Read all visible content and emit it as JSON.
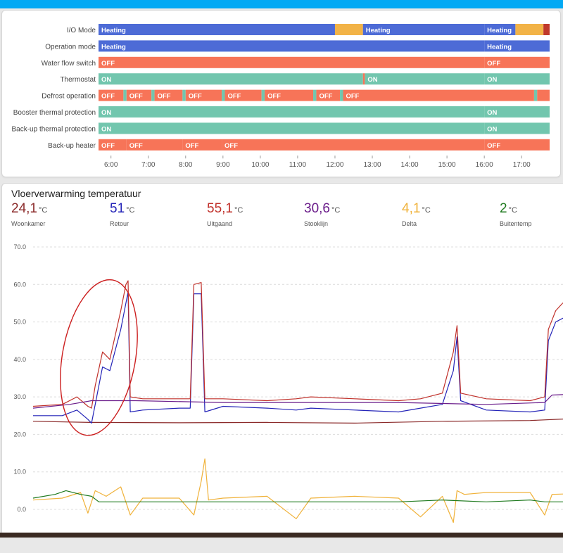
{
  "timeline": {
    "hour_labels": [
      "6:00",
      "7:00",
      "8:00",
      "9:00",
      "10:00",
      "11:00",
      "12:00",
      "13:00",
      "14:00",
      "15:00",
      "16:00",
      "17:00"
    ],
    "colors": {
      "heating": "#4d6bd6",
      "other": "#f2b347",
      "off": "#f77458",
      "on": "#72c6ae",
      "end": "#c0392b",
      "end_on": "#2e5e52"
    },
    "rows": [
      {
        "label": "I/O Mode",
        "segments": [
          {
            "start": "05:40",
            "end": "12:00",
            "state": "heating",
            "text": "Heating"
          },
          {
            "start": "12:00",
            "end": "12:45",
            "state": "other",
            "text": ""
          },
          {
            "start": "12:45",
            "end": "16:00",
            "state": "heating",
            "text": "Heating"
          },
          {
            "start": "16:00",
            "end": "16:50",
            "state": "heating",
            "text": "Heating"
          },
          {
            "start": "16:50",
            "end": "17:35",
            "state": "other",
            "text": ""
          },
          {
            "start": "17:35",
            "end": "17:45",
            "state": "end",
            "text": ""
          }
        ]
      },
      {
        "label": "Operation mode",
        "segments": [
          {
            "start": "05:40",
            "end": "16:00",
            "state": "heating",
            "text": "Heating"
          },
          {
            "start": "16:00",
            "end": "17:45",
            "state": "heating",
            "text": "Heating"
          }
        ]
      },
      {
        "label": "Water flow switch",
        "segments": [
          {
            "start": "05:40",
            "end": "16:00",
            "state": "off",
            "text": "OFF"
          },
          {
            "start": "16:00",
            "end": "17:45",
            "state": "off",
            "text": "OFF"
          }
        ]
      },
      {
        "label": "Thermostat",
        "segments": [
          {
            "start": "05:40",
            "end": "12:45",
            "state": "on",
            "text": "ON"
          },
          {
            "start": "12:45",
            "end": "12:48",
            "state": "off",
            "text": ""
          },
          {
            "start": "12:48",
            "end": "16:00",
            "state": "on",
            "text": "ON"
          },
          {
            "start": "16:00",
            "end": "17:45",
            "state": "on",
            "text": "ON"
          }
        ]
      },
      {
        "label": "Defrost operation",
        "segments": [
          {
            "start": "05:40",
            "end": "06:20",
            "state": "off",
            "text": "OFF"
          },
          {
            "start": "06:20",
            "end": "06:25",
            "state": "on",
            "text": ""
          },
          {
            "start": "06:25",
            "end": "07:05",
            "state": "off",
            "text": "OFF"
          },
          {
            "start": "07:05",
            "end": "07:10",
            "state": "on",
            "text": ""
          },
          {
            "start": "07:10",
            "end": "07:55",
            "state": "off",
            "text": "OFF"
          },
          {
            "start": "07:55",
            "end": "08:00",
            "state": "on",
            "text": ""
          },
          {
            "start": "08:00",
            "end": "08:58",
            "state": "off",
            "text": "OFF"
          },
          {
            "start": "08:58",
            "end": "09:03",
            "state": "on",
            "text": ""
          },
          {
            "start": "09:03",
            "end": "10:02",
            "state": "off",
            "text": "OFF"
          },
          {
            "start": "10:02",
            "end": "10:07",
            "state": "on",
            "text": ""
          },
          {
            "start": "10:07",
            "end": "11:25",
            "state": "off",
            "text": "OFF"
          },
          {
            "start": "11:25",
            "end": "11:30",
            "state": "on",
            "text": ""
          },
          {
            "start": "11:30",
            "end": "12:08",
            "state": "off",
            "text": "OFF"
          },
          {
            "start": "12:08",
            "end": "12:13",
            "state": "on",
            "text": ""
          },
          {
            "start": "12:13",
            "end": "17:20",
            "state": "off",
            "text": "OFF"
          },
          {
            "start": "17:20",
            "end": "17:25",
            "state": "on",
            "text": ""
          },
          {
            "start": "17:25",
            "end": "17:45",
            "state": "off",
            "text": ""
          }
        ]
      },
      {
        "label": "Booster thermal protection",
        "segments": [
          {
            "start": "05:40",
            "end": "16:00",
            "state": "on",
            "text": "ON"
          },
          {
            "start": "16:00",
            "end": "17:45",
            "state": "on",
            "text": "ON"
          }
        ]
      },
      {
        "label": "Back-up thermal protection",
        "segments": [
          {
            "start": "05:40",
            "end": "16:00",
            "state": "on",
            "text": "ON"
          },
          {
            "start": "16:00",
            "end": "17:45",
            "state": "on",
            "text": "ON"
          }
        ]
      },
      {
        "label": "Back-up heater",
        "segments": [
          {
            "start": "05:40",
            "end": "06:25",
            "state": "off",
            "text": "OFF"
          },
          {
            "start": "06:25",
            "end": "07:55",
            "state": "off",
            "text": "OFF"
          },
          {
            "start": "07:55",
            "end": "08:58",
            "state": "off",
            "text": "OFF"
          },
          {
            "start": "08:58",
            "end": "16:00",
            "state": "off",
            "text": "OFF"
          },
          {
            "start": "16:00",
            "end": "17:45",
            "state": "off",
            "text": "OFF"
          }
        ]
      }
    ]
  },
  "temperature_card": {
    "title": "Vloerverwarming temperatuur",
    "unit": "°C",
    "stats": [
      {
        "value": "24,1",
        "label": "Woonkamer",
        "color": "#8b2a2a"
      },
      {
        "value": "51",
        "label": "Retour",
        "color": "#2424b8"
      },
      {
        "value": "55,1",
        "label": "Uitgaand",
        "color": "#c0302a"
      },
      {
        "value": "30,6",
        "label": "Stooklijn",
        "color": "#6a1c8a"
      },
      {
        "value": "4,1",
        "label": "Delta",
        "color": "#f0b23a"
      },
      {
        "value": "2",
        "label": "Buitentemp",
        "color": "#1f7a1f"
      }
    ]
  },
  "chart_data": {
    "type": "line",
    "ylim": [
      0,
      70
    ],
    "yticks": [
      "70.0",
      "60.0",
      "50.0",
      "40.0",
      "30.0",
      "20.0",
      "10.0",
      "0.0"
    ],
    "grid": true,
    "x_domain": [
      "05:40",
      "17:45"
    ],
    "annotation": {
      "type": "ellipse",
      "color": "#cc1f1f",
      "around": "07:05-07:35 rise"
    },
    "series": [
      {
        "name": "Woonkamer",
        "color": "#8b2a2a",
        "points": [
          [
            "05:40",
            23.5
          ],
          [
            "07:00",
            23.2
          ],
          [
            "09:00",
            23.1
          ],
          [
            "11:00",
            23.2
          ],
          [
            "13:00",
            23.0
          ],
          [
            "15:00",
            23.5
          ],
          [
            "17:00",
            23.7
          ],
          [
            "17:45",
            24.1
          ]
        ]
      },
      {
        "name": "Retour",
        "color": "#2424b8",
        "points": [
          [
            "05:40",
            25.0
          ],
          [
            "06:20",
            25.0
          ],
          [
            "06:40",
            26.5
          ],
          [
            "06:55",
            24.0
          ],
          [
            "07:00",
            23.0
          ],
          [
            "07:05",
            28.0
          ],
          [
            "07:15",
            38.0
          ],
          [
            "07:25",
            37.0
          ],
          [
            "07:40",
            48.0
          ],
          [
            "07:47",
            55.0
          ],
          [
            "07:50",
            58.0
          ],
          [
            "07:53",
            26.0
          ],
          [
            "08:10",
            26.5
          ],
          [
            "09:00",
            27.0
          ],
          [
            "09:15",
            27.0
          ],
          [
            "09:20",
            57.5
          ],
          [
            "09:30",
            57.5
          ],
          [
            "09:35",
            26.0
          ],
          [
            "10:00",
            27.5
          ],
          [
            "11:00",
            27.0
          ],
          [
            "11:40",
            26.5
          ],
          [
            "12:00",
            27.0
          ],
          [
            "13:00",
            26.5
          ],
          [
            "14:00",
            26.0
          ],
          [
            "14:30",
            27.0
          ],
          [
            "15:00",
            28.0
          ],
          [
            "15:15",
            37.0
          ],
          [
            "15:20",
            46.0
          ],
          [
            "15:25",
            29.0
          ],
          [
            "16:00",
            26.5
          ],
          [
            "17:00",
            26.0
          ],
          [
            "17:20",
            26.5
          ],
          [
            "17:25",
            45.0
          ],
          [
            "17:35",
            50.0
          ],
          [
            "17:45",
            51.0
          ]
        ]
      },
      {
        "name": "Uitgaand",
        "color": "#c0302a",
        "points": [
          [
            "05:40",
            27.5
          ],
          [
            "06:20",
            28.0
          ],
          [
            "06:40",
            30.0
          ],
          [
            "06:55",
            27.5
          ],
          [
            "07:00",
            27.0
          ],
          [
            "07:05",
            33.0
          ],
          [
            "07:15",
            42.0
          ],
          [
            "07:25",
            40.0
          ],
          [
            "07:40",
            53.0
          ],
          [
            "07:47",
            60.0
          ],
          [
            "07:50",
            61.0
          ],
          [
            "07:53",
            30.0
          ],
          [
            "08:10",
            29.5
          ],
          [
            "09:00",
            29.5
          ],
          [
            "09:15",
            29.5
          ],
          [
            "09:20",
            60.0
          ],
          [
            "09:30",
            60.5
          ],
          [
            "09:35",
            29.5
          ],
          [
            "10:00",
            29.5
          ],
          [
            "11:00",
            29.0
          ],
          [
            "11:40",
            29.5
          ],
          [
            "12:00",
            30.0
          ],
          [
            "13:00",
            29.5
          ],
          [
            "14:00",
            29.0
          ],
          [
            "14:30",
            29.5
          ],
          [
            "15:00",
            31.0
          ],
          [
            "15:15",
            42.0
          ],
          [
            "15:20",
            49.0
          ],
          [
            "15:25",
            31.0
          ],
          [
            "16:00",
            29.5
          ],
          [
            "17:00",
            29.0
          ],
          [
            "17:20",
            30.0
          ],
          [
            "17:25",
            48.0
          ],
          [
            "17:35",
            53.0
          ],
          [
            "17:45",
            55.1
          ]
        ]
      },
      {
        "name": "Stooklijn",
        "color": "#6a1c8a",
        "points": [
          [
            "05:40",
            27.0
          ],
          [
            "06:30",
            28.0
          ],
          [
            "07:00",
            29.0
          ],
          [
            "08:00",
            29.0
          ],
          [
            "10:00",
            28.5
          ],
          [
            "12:00",
            28.5
          ],
          [
            "14:00",
            28.5
          ],
          [
            "16:00",
            28.0
          ],
          [
            "17:20",
            28.5
          ],
          [
            "17:30",
            30.5
          ],
          [
            "17:45",
            30.6
          ]
        ]
      },
      {
        "name": "Delta",
        "color": "#f0b23a",
        "points": [
          [
            "05:40",
            2.5
          ],
          [
            "06:20",
            3.0
          ],
          [
            "06:45",
            4.5
          ],
          [
            "06:55",
            -1.0
          ],
          [
            "07:05",
            5.0
          ],
          [
            "07:20",
            3.5
          ],
          [
            "07:40",
            6.0
          ],
          [
            "07:53",
            -1.5
          ],
          [
            "08:10",
            3.0
          ],
          [
            "09:00",
            3.0
          ],
          [
            "09:20",
            -1.5
          ],
          [
            "09:30",
            7.5
          ],
          [
            "09:35",
            13.5
          ],
          [
            "09:40",
            2.5
          ],
          [
            "10:00",
            3.0
          ],
          [
            "11:00",
            3.5
          ],
          [
            "11:40",
            -2.5
          ],
          [
            "12:00",
            3.0
          ],
          [
            "13:00",
            3.5
          ],
          [
            "14:00",
            3.0
          ],
          [
            "14:30",
            -2.0
          ],
          [
            "15:00",
            3.5
          ],
          [
            "15:15",
            -3.5
          ],
          [
            "15:20",
            5.0
          ],
          [
            "15:30",
            4.0
          ],
          [
            "16:00",
            4.5
          ],
          [
            "17:00",
            4.5
          ],
          [
            "17:20",
            -1.5
          ],
          [
            "17:30",
            4.0
          ],
          [
            "17:45",
            4.1
          ]
        ]
      },
      {
        "name": "Buitentemp",
        "color": "#1f7a1f",
        "points": [
          [
            "05:40",
            3.0
          ],
          [
            "06:10",
            4.0
          ],
          [
            "06:25",
            5.0
          ],
          [
            "06:45",
            4.0
          ],
          [
            "07:00",
            3.5
          ],
          [
            "07:10",
            2.0
          ],
          [
            "08:00",
            2.0
          ],
          [
            "09:00",
            2.0
          ],
          [
            "10:00",
            2.0
          ],
          [
            "12:00",
            2.0
          ],
          [
            "14:00",
            2.0
          ],
          [
            "15:00",
            2.5
          ],
          [
            "16:00",
            2.0
          ],
          [
            "17:00",
            2.5
          ],
          [
            "17:20",
            2.0
          ],
          [
            "17:45",
            2.0
          ]
        ]
      }
    ]
  }
}
